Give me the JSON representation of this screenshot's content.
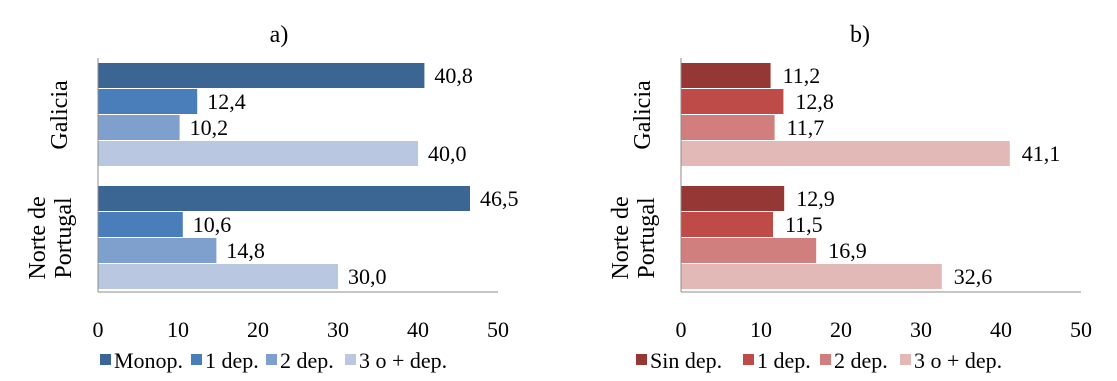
{
  "chart_data": [
    {
      "type": "bar",
      "orientation": "horizontal",
      "title": "a)",
      "categories": [
        "Galicia",
        "Norte de Portugal"
      ],
      "category_label_lines": [
        [
          "Galicia"
        ],
        [
          "Norte de",
          "Portugal"
        ]
      ],
      "series": [
        {
          "name": "Monop.",
          "values": [
            40.8,
            46.5
          ],
          "labels": [
            "40,8",
            "46,5"
          ],
          "color": "#3b6593"
        },
        {
          "name": "1 dep.",
          "values": [
            12.4,
            10.6
          ],
          "labels": [
            "12,4",
            "10,6"
          ],
          "color": "#4a7ebb"
        },
        {
          "name": "2 dep.",
          "values": [
            10.2,
            14.8
          ],
          "labels": [
            "10,2",
            "14,8"
          ],
          "color": "#7f9fcc"
        },
        {
          "name": "3 o + dep.",
          "values": [
            40.0,
            30.0
          ],
          "labels": [
            "40,0",
            "30,0"
          ],
          "color": "#b9c7e0"
        }
      ],
      "xlim": [
        0,
        50
      ],
      "xticks": [
        "0",
        "10",
        "20",
        "30",
        "40",
        "50"
      ],
      "legend_position": "bottom",
      "grid": false
    },
    {
      "type": "bar",
      "orientation": "horizontal",
      "title": "b)",
      "categories": [
        "Galicia",
        "Norte de Portugal"
      ],
      "category_label_lines": [
        [
          "Galicia"
        ],
        [
          "Norte de",
          "Portugal"
        ]
      ],
      "series": [
        {
          "name": "Sin dep.",
          "values": [
            11.2,
            12.9
          ],
          "labels": [
            "11,2",
            "12,9"
          ],
          "color": "#953735"
        },
        {
          "name": "1 dep.",
          "values": [
            12.8,
            11.5
          ],
          "labels": [
            "12,8",
            "11,5"
          ],
          "color": "#be4b48"
        },
        {
          "name": "2 dep.",
          "values": [
            11.7,
            16.9
          ],
          "labels": [
            "11,7",
            "16,9"
          ],
          "color": "#d07f7e"
        },
        {
          "name": "3 o + dep.",
          "values": [
            41.1,
            32.6
          ],
          "labels": [
            "41,1",
            "32,6"
          ],
          "color": "#e3b9b8"
        }
      ],
      "xlim": [
        0,
        50
      ],
      "xticks": [
        "0",
        "10",
        "20",
        "30",
        "40",
        "50"
      ],
      "legend_position": "bottom",
      "grid": false
    }
  ]
}
